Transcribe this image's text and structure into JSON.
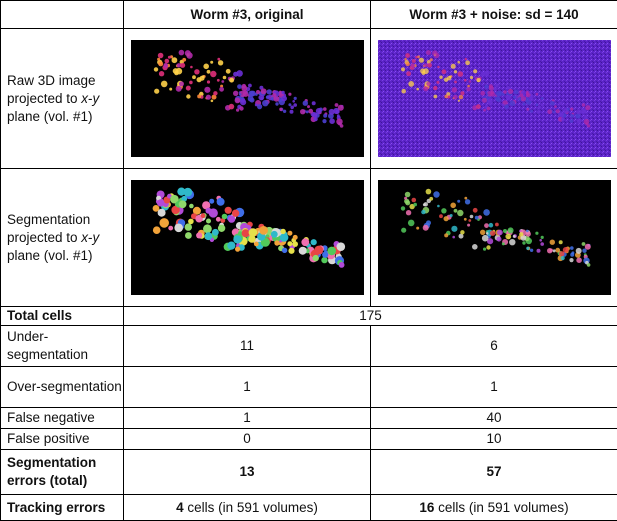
{
  "header": {
    "col1": "Worm #3, original",
    "col2": "Worm #3 + noise: sd = 140"
  },
  "rows": {
    "raw": {
      "label_pre": "Raw 3D image projected to ",
      "label_it1": "x",
      "label_dash": "-",
      "label_it2": "y",
      "label_post": " plane (vol. #1)"
    },
    "seg": {
      "label_pre": "Segmentation projected to ",
      "label_it1": "x",
      "label_dash": "-",
      "label_it2": "y",
      "label_post": " plane (vol. #1)"
    },
    "total": {
      "label": "Total cells",
      "value": "175"
    },
    "under": {
      "label": "Under-segmentation",
      "v1": "11",
      "v2": "6"
    },
    "over": {
      "label": "Over-segmentation",
      "v1": "1",
      "v2": "1"
    },
    "fneg": {
      "label": "False negative",
      "v1": "1",
      "v2": "40"
    },
    "fpos": {
      "label": "False positive",
      "v1": "0",
      "v2": "10"
    },
    "segerr": {
      "label": "Segmentation errors (total)",
      "v1": "13",
      "v2": "57"
    },
    "track": {
      "label": "Tracking errors",
      "v1_bold": "4",
      "v1_rest": " cells (in 591 volumes)",
      "v2_bold": "16",
      "v2_rest": " cells (in 591 volumes)"
    }
  },
  "colors": {
    "noise_bg": "#5b24c8",
    "raw_bg": "#000000",
    "cell_hot": "#ffd24a",
    "cell_mid": "#e0307a",
    "cell_cold": "#6a2fd6"
  }
}
